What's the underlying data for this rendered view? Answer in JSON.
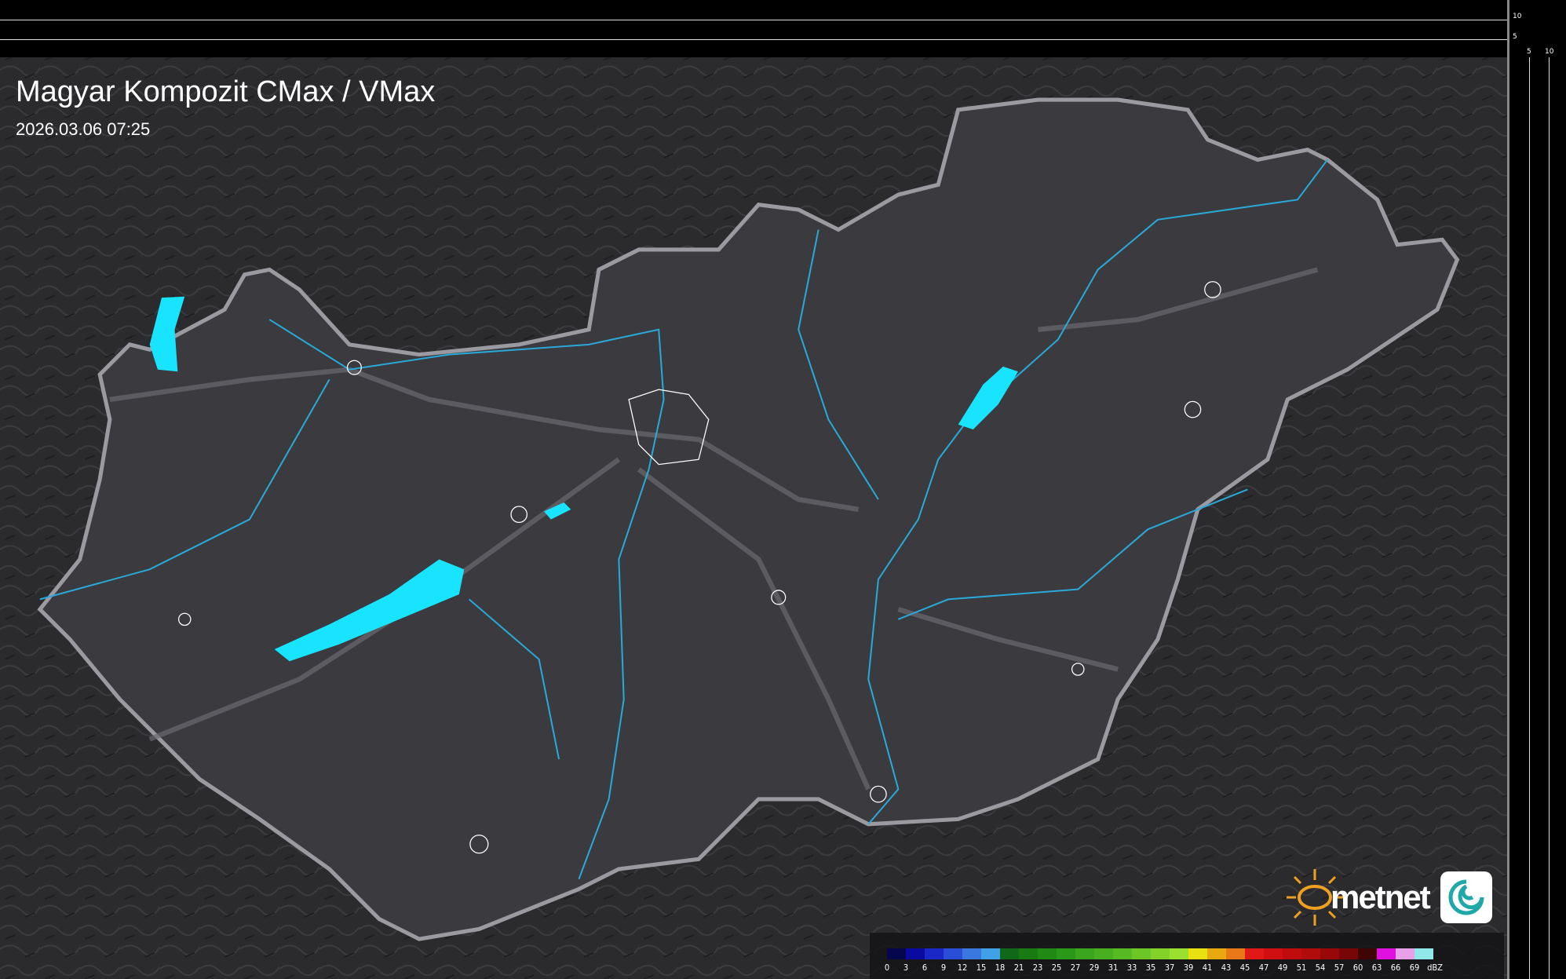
{
  "title": "Magyar Kompozit CMax / VMax",
  "timestamp": "2026.03.06 07:25",
  "scale": {
    "vertical_labels": [
      "10",
      "5"
    ],
    "horizontal_labels": [
      "5",
      "10"
    ]
  },
  "legend": {
    "unit": "dBZ",
    "ticks": [
      "0",
      "3",
      "6",
      "9",
      "12",
      "15",
      "18",
      "21",
      "23",
      "25",
      "27",
      "29",
      "31",
      "33",
      "35",
      "37",
      "39",
      "41",
      "43",
      "45",
      "47",
      "49",
      "51",
      "54",
      "57",
      "60",
      "63",
      "66",
      "69"
    ],
    "colors": [
      "#06064f",
      "#0a0aa0",
      "#1a28c8",
      "#2a4ed8",
      "#3a78e0",
      "#40a0e8",
      "#106818",
      "#1a7a12",
      "#208a14",
      "#2a9818",
      "#3aa61e",
      "#48b020",
      "#58ba22",
      "#6cc626",
      "#82d22a",
      "#9ae02e",
      "#e8e010",
      "#e8a810",
      "#e87818",
      "#e01818",
      "#d01010",
      "#c00c0c",
      "#b00c0c",
      "#980808",
      "#780606",
      "#400404",
      "#e010e0",
      "#e8a0e8",
      "#90e8e8"
    ]
  },
  "colors": {
    "background": "#2e2e32",
    "border": "#9a9aa0",
    "river": "#2aa8d8",
    "lake": "#18e4ff"
  },
  "logo": {
    "text": "metnet"
  }
}
